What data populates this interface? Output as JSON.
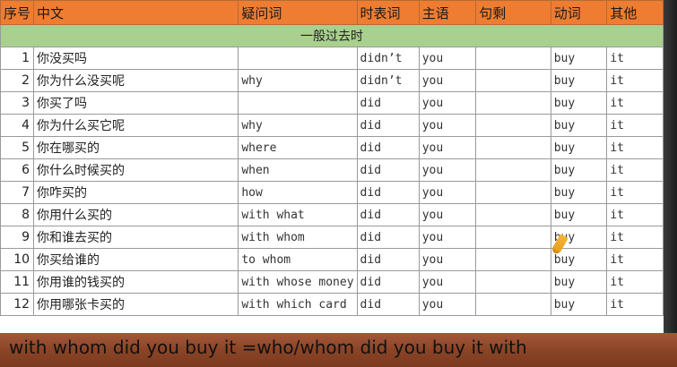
{
  "headers": [
    "序号",
    "中文",
    "疑问词",
    "时表词",
    "主语",
    "句剩",
    "动词",
    "其他"
  ],
  "section": "一般过去时",
  "rows": [
    {
      "no": "1",
      "cn": "你没买吗",
      "wh": "",
      "aux": "didn’t",
      "subj": "you",
      "rest": "",
      "verb": "buy",
      "other": "it"
    },
    {
      "no": "2",
      "cn": "你为什么没买呢",
      "wh": "why",
      "aux": "didn’t",
      "subj": "you",
      "rest": "",
      "verb": "buy",
      "other": "it"
    },
    {
      "no": "3",
      "cn": "你买了吗",
      "wh": "",
      "aux": "did",
      "subj": "you",
      "rest": "",
      "verb": "buy",
      "other": "it"
    },
    {
      "no": "4",
      "cn": "你为什么买它呢",
      "wh": "why",
      "aux": "did",
      "subj": "you",
      "rest": "",
      "verb": "buy",
      "other": "it"
    },
    {
      "no": "5",
      "cn": "你在哪买的",
      "wh": "where",
      "aux": "did",
      "subj": "you",
      "rest": "",
      "verb": "buy",
      "other": "it"
    },
    {
      "no": "6",
      "cn": "你什么时候买的",
      "wh": "when",
      "aux": "did",
      "subj": "you",
      "rest": "",
      "verb": "buy",
      "other": "it"
    },
    {
      "no": "7",
      "cn": "你咋买的",
      "wh": "how",
      "aux": "did",
      "subj": "you",
      "rest": "",
      "verb": "buy",
      "other": "it"
    },
    {
      "no": "8",
      "cn": "你用什么买的",
      "wh": "with what",
      "aux": "did",
      "subj": "you",
      "rest": "",
      "verb": "buy",
      "other": "it"
    },
    {
      "no": "9",
      "cn": "你和谁去买的",
      "wh": "with whom",
      "aux": "did",
      "subj": "you",
      "rest": "",
      "verb": "buy",
      "other": "it"
    },
    {
      "no": "10",
      "cn": "你买给谁的",
      "wh": "to whom",
      "aux": "did",
      "subj": "you",
      "rest": "",
      "verb": "buy",
      "other": "it"
    },
    {
      "no": "11",
      "cn": "你用谁的钱买的",
      "wh": "with whose money",
      "aux": "did",
      "subj": "you",
      "rest": "",
      "verb": "buy",
      "other": "it"
    },
    {
      "no": "12",
      "cn": "你用哪张卡买的",
      "wh": "with which card",
      "aux": "did",
      "subj": "you",
      "rest": "",
      "verb": "buy",
      "other": "it"
    }
  ],
  "caption": "with whom did you buy it =who/whom did you buy it with",
  "colors": {
    "header": "#ee7d31",
    "section": "#a9d08e",
    "floor": "#8b4426"
  },
  "cursor_icon": "pencil-icon"
}
